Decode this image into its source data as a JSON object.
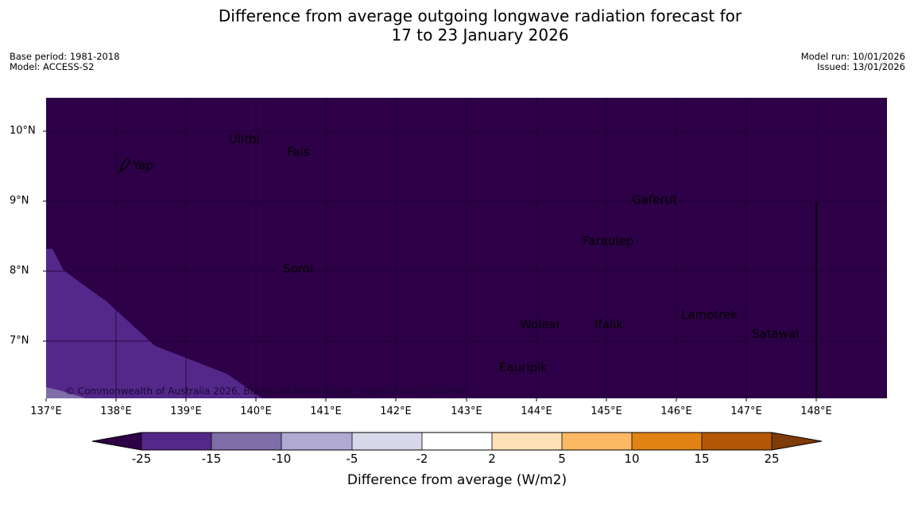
{
  "title": {
    "line1": "Difference from average outgoing longwave radiation forecast for",
    "line2": "17 to 23 January 2026"
  },
  "meta": {
    "base_period": "Base period: 1981-2018",
    "model": "Model: ACCESS-S2",
    "model_run": "Model run: 10/01/2026",
    "issued": "Issued: 13/01/2026"
  },
  "map": {
    "latitude_labels": [
      "10°N",
      "9°N",
      "8°N",
      "7°N"
    ],
    "longitude_labels": [
      "137°E",
      "138°E",
      "139°E",
      "140°E",
      "141°E",
      "142°E",
      "143°E",
      "144°E",
      "145°E",
      "146°E",
      "147°E",
      "148°E"
    ],
    "places": {
      "ulithi": "Ulithi",
      "fais": "Fais",
      "yap": "Yap",
      "gaferut": "Gaferut",
      "faraulep": "Faraulep",
      "sorol": "Sorol",
      "woleai": "Woleai",
      "ifalik": "Ifalik",
      "lamotrek": "Lamotrek",
      "satawal": "Satawal",
      "eauripik": "Eauripik"
    },
    "copyright": "© Commonwealth of Australia 2026, Bureau of Meteorology, supported by COSPPac",
    "colors": {
      "below_minus_25": "#2d0047",
      "minus_25_to_minus_15": "#54288a",
      "minus_15_to_minus_10": "#7f6da7",
      "minus_10_to_minus_5": "#b0a9d2"
    }
  },
  "colorbar": {
    "title": "Difference from average (W/m2)",
    "tick_labels": [
      "-25",
      "-15",
      "-10",
      "-5",
      "-2",
      "2",
      "5",
      "10",
      "15",
      "25"
    ],
    "colors": [
      "#2d0047",
      "#54288a",
      "#7f6da7",
      "#b0a9d2",
      "#d8d8ea",
      "#ffffff",
      "#fee0b6",
      "#fdb863",
      "#e08214",
      "#b35806",
      "#7f3b08"
    ]
  }
}
